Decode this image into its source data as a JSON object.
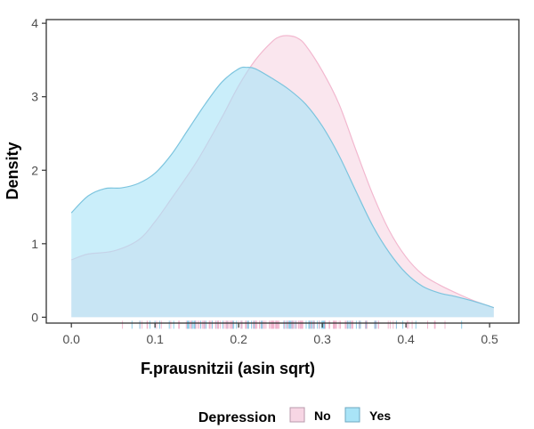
{
  "chart_data": {
    "type": "area",
    "xlabel": "F.prausnitzii (asin sqrt)",
    "ylabel": "Density",
    "xlim": [
      -0.03,
      0.535
    ],
    "ylim": [
      -0.08,
      4.05
    ],
    "x_ticks": [
      0.0,
      0.1,
      0.2,
      0.3,
      0.4,
      0.5
    ],
    "x_tick_labels": [
      "0.0",
      "0.1",
      "0.2",
      "0.3",
      "0.4",
      "0.5"
    ],
    "y_ticks": [
      0,
      1,
      2,
      3,
      4
    ],
    "y_tick_labels": [
      "0",
      "1",
      "2",
      "3",
      "4"
    ],
    "grid": false,
    "legend": {
      "title": "Depression",
      "position": "bottom"
    },
    "series": [
      {
        "name": "No",
        "fill": "#f7d6e4",
        "stroke": "#f2b8cf",
        "x": [
          0.0,
          0.02,
          0.05,
          0.08,
          0.1,
          0.12,
          0.15,
          0.18,
          0.2,
          0.22,
          0.24,
          0.25,
          0.26,
          0.27,
          0.28,
          0.3,
          0.32,
          0.34,
          0.36,
          0.38,
          0.4,
          0.42,
          0.44,
          0.46,
          0.48,
          0.5,
          0.505
        ],
        "values": [
          0.78,
          0.86,
          0.9,
          1.05,
          1.3,
          1.62,
          2.12,
          2.72,
          3.15,
          3.5,
          3.75,
          3.82,
          3.83,
          3.8,
          3.7,
          3.35,
          2.9,
          2.28,
          1.68,
          1.18,
          0.82,
          0.58,
          0.44,
          0.33,
          0.23,
          0.15,
          0.13
        ]
      },
      {
        "name": "Yes",
        "fill": "#a9e4f7",
        "stroke": "#7cc4de",
        "x": [
          0.0,
          0.02,
          0.04,
          0.06,
          0.08,
          0.1,
          0.12,
          0.14,
          0.16,
          0.18,
          0.2,
          0.21,
          0.22,
          0.24,
          0.26,
          0.28,
          0.3,
          0.32,
          0.34,
          0.36,
          0.38,
          0.4,
          0.42,
          0.44,
          0.46,
          0.48,
          0.5,
          0.505
        ],
        "values": [
          1.42,
          1.65,
          1.75,
          1.76,
          1.82,
          1.96,
          2.22,
          2.56,
          2.9,
          3.2,
          3.38,
          3.4,
          3.38,
          3.25,
          3.1,
          2.9,
          2.6,
          2.2,
          1.72,
          1.25,
          0.88,
          0.6,
          0.42,
          0.33,
          0.28,
          0.22,
          0.15,
          0.13
        ]
      }
    ]
  }
}
